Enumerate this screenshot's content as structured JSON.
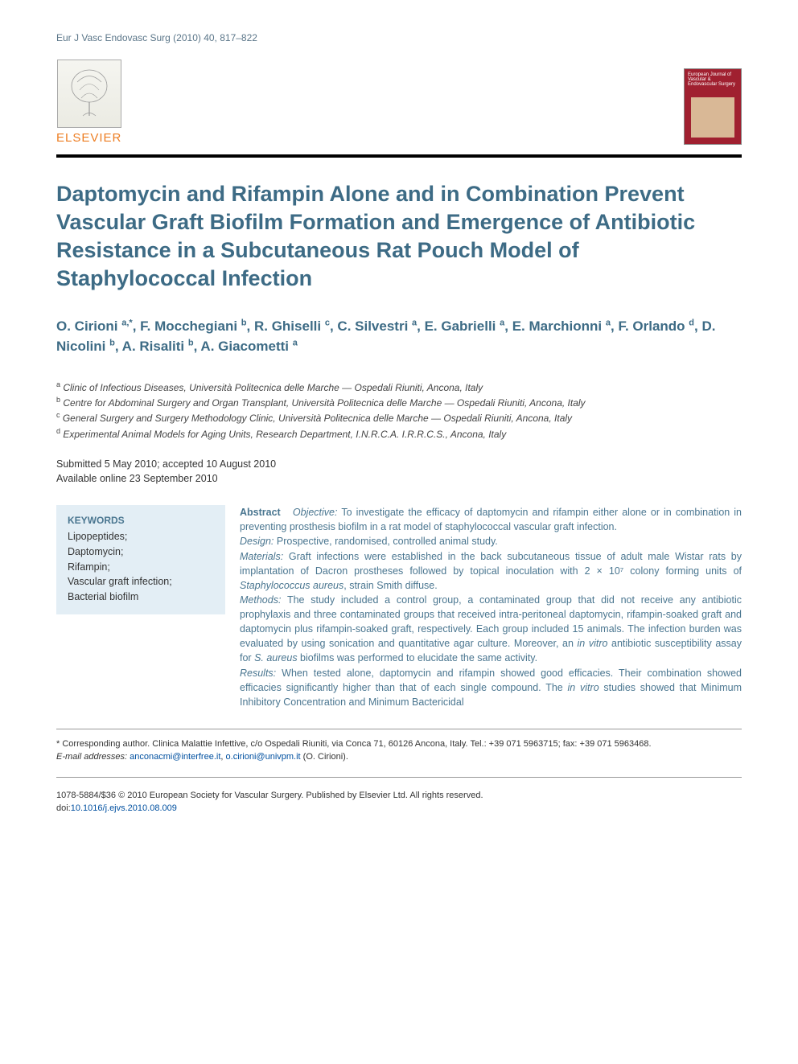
{
  "journal_ref": "Eur J Vasc Endovasc Surg (2010) 40, 817–822",
  "publisher": "ELSEVIER",
  "journal_cover_text": "European Journal of Vascular & Endovascular Surgery",
  "title": "Daptomycin and Rifampin Alone and in Combination Prevent Vascular Graft Biofilm Formation and Emergence of Antibiotic Resistance in a Subcutaneous Rat Pouch Model of Staphylococcal Infection",
  "authors_html": "O. Cirioni <sup>a,*</sup>, F. Mocchegiani <sup>b</sup>, R. Ghiselli <sup>c</sup>, C. Silvestri <sup>a</sup>, E. Gabrielli <sup>a</sup>, E. Marchionni <sup>a</sup>, F. Orlando <sup>d</sup>, D. Nicolini <sup>b</sup>, A. Risaliti <sup>b</sup>, A. Giacometti <sup>a</sup>",
  "affiliations": [
    {
      "key": "a",
      "text": "Clinic of Infectious Diseases, Università Politecnica delle Marche — Ospedali Riuniti, Ancona, Italy"
    },
    {
      "key": "b",
      "text": "Centre for Abdominal Surgery and Organ Transplant, Università Politecnica delle Marche — Ospedali Riuniti, Ancona, Italy"
    },
    {
      "key": "c",
      "text": "General Surgery and Surgery Methodology Clinic, Università Politecnica delle Marche — Ospedali Riuniti, Ancona, Italy"
    },
    {
      "key": "d",
      "text": "Experimental Animal Models for Aging Units, Research Department, I.N.R.C.A. I.R.R.C.S., Ancona, Italy"
    }
  ],
  "dates_line1": "Submitted 5 May 2010; accepted 10 August 2010",
  "dates_line2": "Available online 23 September 2010",
  "keywords_heading": "KEYWORDS",
  "keywords": "Lipopeptides;\nDaptomycin;\nRifampin;\nVascular graft infection;\nBacterial biofilm",
  "abstract": {
    "label": "Abstract",
    "objective_label": "Objective:",
    "objective": "To investigate the efficacy of daptomycin and rifampin either alone or in combination in preventing prosthesis biofilm in a rat model of staphylococcal vascular graft infection.",
    "design_label": "Design:",
    "design": "Prospective, randomised, controlled animal study.",
    "materials_label": "Materials:",
    "materials": "Graft infections were established in the back subcutaneous tissue of adult male Wistar rats by implantation of Dacron prostheses followed by topical inoculation with 2 × 10⁷ colony forming units of Staphylococcus aureus, strain Smith diffuse.",
    "methods_label": "Methods:",
    "methods": "The study included a control group, a contaminated group that did not receive any antibiotic prophylaxis and three contaminated groups that received intra-peritoneal daptomycin, rifampin-soaked graft and daptomycin plus rifampin-soaked graft, respectively. Each group included 15 animals. The infection burden was evaluated by using sonication and quantitative agar culture. Moreover, an in vitro antibiotic susceptibility assay for S. aureus biofilms was performed to elucidate the same activity.",
    "results_label": "Results:",
    "results": "When tested alone, daptomycin and rifampin showed good efficacies. Their combination showed efficacies significantly higher than that of each single compound. The in vitro studies showed that Minimum Inhibitory Concentration and Minimum Bactericidal"
  },
  "corresponding": {
    "marker": "*",
    "text": "Corresponding author. Clinica Malattie Infettive, c/o Ospedali Riuniti, via Conca 71, 60126 Ancona, Italy. Tel.: +39 071 5963715; fax: +39 071 5963468."
  },
  "email_label": "E-mail addresses:",
  "email1": "anconacmi@interfree.it",
  "email2": "o.cirioni@univpm.it",
  "email_attribution": "(O. Cirioni).",
  "copyright_line": "1078-5884/$36 © 2010 European Society for Vascular Surgery. Published by Elsevier Ltd. All rights reserved.",
  "doi_prefix": "doi:",
  "doi": "10.1016/j.ejvs.2010.08.009",
  "colors": {
    "heading_color": "#3d6b85",
    "abstract_color": "#4a7690",
    "keywords_bg": "#e3eef5",
    "publisher_orange": "#ed7d22",
    "journal_ref_color": "#5b7689",
    "cover_bg": "#a02030",
    "link_color": "#0050a0"
  },
  "typography": {
    "title_fontsize": 27,
    "authors_fontsize": 17,
    "body_fontsize": 12.5,
    "footnote_fontsize": 11
  }
}
